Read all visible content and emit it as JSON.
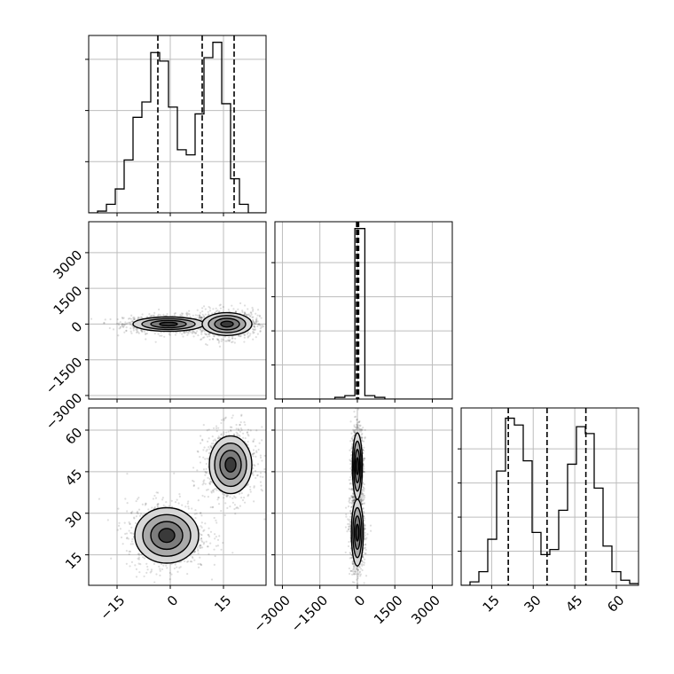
{
  "chart_data": {
    "type": "corner",
    "parameters": 3,
    "grid": true,
    "panels": [
      {
        "kind": "histogram",
        "param": 0,
        "xlim": [
          -23,
          27
        ],
        "bins": [
          -23,
          -20.5,
          -18,
          -15.5,
          -13,
          -10.5,
          -8,
          -5.5,
          -3,
          -0.5,
          2,
          4.5,
          7,
          9.5,
          12,
          14.5,
          17,
          19.5,
          22,
          24.5,
          27
        ],
        "counts": [
          0,
          1,
          5,
          14,
          31,
          56,
          65,
          94,
          89,
          62,
          37,
          34,
          58,
          91,
          100,
          64,
          20,
          5,
          0,
          0
        ],
        "quantile_lines": [
          -3.5,
          9,
          18
        ],
        "ylim": [
          0,
          104
        ],
        "yticks": [
          0,
          30,
          60,
          90
        ]
      },
      {
        "kind": "histogram",
        "param": 1,
        "xlim": [
          -3300,
          3800
        ],
        "bins": [
          -3300,
          -2900,
          -2500,
          -2100,
          -1700,
          -1300,
          -900,
          -500,
          -100,
          300,
          700,
          1100,
          1500,
          1900,
          2300,
          2700,
          3100,
          3500,
          3800
        ],
        "counts": [
          0,
          0,
          0,
          0,
          0,
          0,
          1,
          2,
          100,
          2,
          1,
          0,
          0,
          0,
          0,
          0,
          0,
          0
        ],
        "quantile_lines": [
          -30,
          10,
          50
        ],
        "ylim": [
          0,
          104
        ],
        "yticks": [
          0,
          20,
          40,
          60,
          80
        ]
      },
      {
        "kind": "histogram",
        "param": 2,
        "xlim": [
          4,
          68
        ],
        "bins": [
          4,
          7.2,
          10.4,
          13.6,
          16.8,
          20,
          23.2,
          26.4,
          29.6,
          32.8,
          36,
          39.2,
          42.4,
          45.6,
          48.8,
          52,
          55.2,
          58.4,
          61.6,
          64.8,
          68
        ],
        "counts": [
          0,
          2,
          8,
          27,
          67,
          98,
          94,
          73,
          31,
          18,
          21,
          44,
          71,
          93,
          89,
          57,
          23,
          8,
          3,
          1
        ],
        "quantile_lines": [
          21,
          35,
          49
        ],
        "ylim": [
          0,
          104
        ],
        "yticks": [
          0,
          20,
          40,
          60,
          80
        ]
      },
      {
        "kind": "2d",
        "xparam": 0,
        "yparam": 1,
        "xlim": [
          -23,
          27
        ],
        "ylim": [
          -3150,
          4300
        ],
        "modes": [
          {
            "x": -0.5,
            "y": 0,
            "sx": 5,
            "sy": 150
          },
          {
            "x": 16,
            "y": 0,
            "sx": 3.5,
            "sy": 240
          }
        ]
      },
      {
        "kind": "2d",
        "xparam": 0,
        "yparam": 2,
        "xlim": [
          -23,
          27
        ],
        "ylim": [
          4,
          68
        ],
        "modes": [
          {
            "x": -1,
            "y": 22,
            "sx": 4.5,
            "sy": 5
          },
          {
            "x": 17,
            "y": 47.5,
            "sx": 3,
            "sy": 5.2
          }
        ]
      },
      {
        "kind": "2d",
        "xparam": 1,
        "yparam": 2,
        "xlim": [
          -3300,
          3800
        ],
        "ylim": [
          4,
          68
        ],
        "modes": [
          {
            "x": 0,
            "y": 47,
            "sx": 100,
            "sy": 6
          },
          {
            "x": 0,
            "y": 23,
            "sx": 120,
            "sy": 6
          }
        ]
      }
    ],
    "axes": [
      {
        "param": 0,
        "ticks": [
          -15,
          0,
          15
        ],
        "tick_labels": [
          "−15",
          "0",
          "15"
        ]
      },
      {
        "param": 1,
        "ticks": [
          -3000,
          -1500,
          0,
          1500,
          3000
        ],
        "tick_labels": [
          "−3000",
          "−1500",
          "0",
          "1500",
          "3000"
        ]
      },
      {
        "param": 2,
        "ticks": [
          15,
          30,
          45,
          60
        ],
        "tick_labels": [
          "15",
          "30",
          "45",
          "60"
        ]
      }
    ],
    "xlabel": "",
    "ylabel": "",
    "title": ""
  }
}
